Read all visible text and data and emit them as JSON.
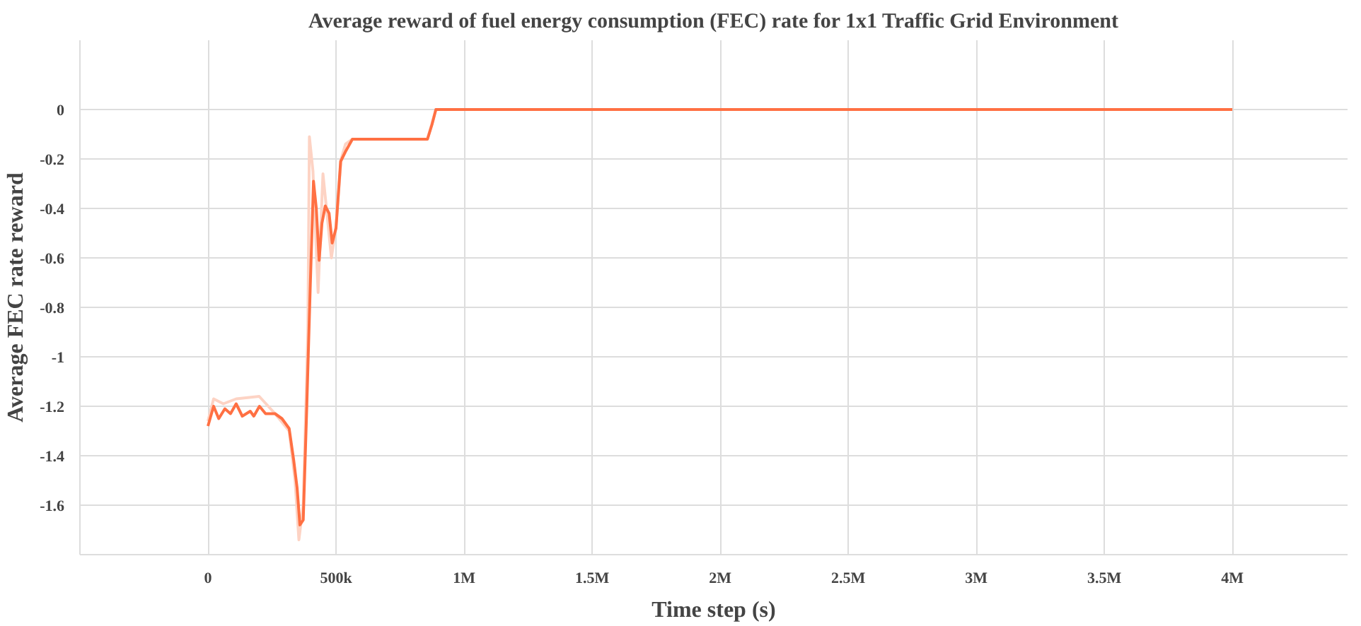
{
  "chart_data": {
    "type": "line",
    "title": "Average reward of fuel energy consumption (FEC) rate for 1x1 Traffic Grid Environment",
    "xlabel": "Time step (s)",
    "ylabel": "Average FEC rate reward",
    "xlim": [
      -500000,
      4450000
    ],
    "ylim": [
      -1.8,
      0.28
    ],
    "xticks": [
      0,
      {
        "value": 500000,
        "label": "500k"
      },
      {
        "value": 1000000,
        "label": "1M"
      },
      {
        "value": 1500000,
        "label": "1.5M"
      },
      {
        "value": 2000000,
        "label": "2M"
      },
      {
        "value": 2500000,
        "label": "2.5M"
      },
      {
        "value": 3000000,
        "label": "3M"
      },
      {
        "value": 3500000,
        "label": "3.5M"
      },
      {
        "value": 4000000,
        "label": "4M"
      }
    ],
    "yticks": [
      0,
      -0.2,
      -0.4,
      -0.6,
      -0.8,
      -1,
      -1.2,
      -1.4,
      -1.6
    ],
    "grid": true,
    "marker": "none",
    "line_style": "solid",
    "series": [
      {
        "color": "#fdd3c4",
        "x": [
          0,
          22000,
          60000,
          110000,
          200000,
          262000,
          317000,
          340000,
          355000,
          372000,
          390000,
          396000,
          410000,
          430000,
          449000,
          482000,
          500000,
          520000,
          537000,
          564000,
          857000,
          890000,
          4000000
        ],
        "values": [
          -1.26,
          -1.17,
          -1.19,
          -1.17,
          -1.16,
          -1.23,
          -1.3,
          -1.5,
          -1.74,
          -1.6,
          -0.9,
          -0.11,
          -0.25,
          -0.74,
          -0.26,
          -0.6,
          -0.47,
          -0.2,
          -0.14,
          -0.12,
          -0.12,
          0,
          0
        ]
      },
      {
        "color": "#ff7043",
        "x": [
          0,
          22000,
          42000,
          66000,
          88000,
          110000,
          134000,
          165000,
          179000,
          201000,
          225000,
          262000,
          289000,
          317000,
          335000,
          348000,
          359000,
          372000,
          385000,
          399000,
          412000,
          423000,
          434000,
          445000,
          458000,
          473000,
          485000,
          500000,
          518000,
          537000,
          564000,
          674000,
          857000,
          875000,
          890000,
          4000000
        ],
        "values": [
          -1.28,
          -1.2,
          -1.25,
          -1.21,
          -1.23,
          -1.19,
          -1.24,
          -1.22,
          -1.24,
          -1.2,
          -1.23,
          -1.23,
          -1.25,
          -1.29,
          -1.42,
          -1.53,
          -1.68,
          -1.66,
          -1.23,
          -0.73,
          -0.29,
          -0.4,
          -0.61,
          -0.46,
          -0.39,
          -0.42,
          -0.54,
          -0.48,
          -0.21,
          -0.17,
          -0.12,
          -0.12,
          -0.12,
          -0.06,
          0,
          0
        ]
      }
    ]
  }
}
